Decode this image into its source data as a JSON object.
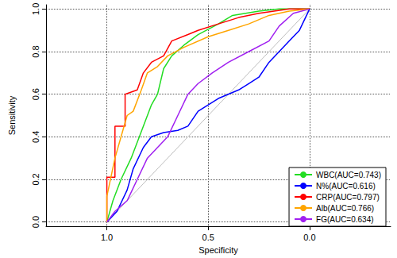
{
  "chart_data": {
    "type": "line",
    "x_label": "Specificity",
    "y_label": "Sensitivity",
    "xlim": [
      1.3,
      -0.4
    ],
    "xticks": [
      {
        "value": 1,
        "label": "1.0"
      },
      {
        "value": 0.5,
        "label": "0.5"
      },
      {
        "value": 0,
        "label": "0.0"
      }
    ],
    "ylim": [
      -0.02,
      1.02
    ],
    "yticks": [
      {
        "value": 0,
        "label": "0.0"
      },
      {
        "value": 0.2,
        "label": "0.2"
      },
      {
        "value": 0.4,
        "label": "0.4"
      },
      {
        "value": 0.6,
        "label": "0.6"
      },
      {
        "value": 0.8,
        "label": "0.8"
      },
      {
        "value": 1,
        "label": "1.0"
      }
    ],
    "grid": true,
    "legend": "bottom right",
    "diagonal": {
      "x": [
        1,
        0
      ],
      "y": [
        0,
        1
      ],
      "color": "#bebebe"
    },
    "series": [
      {
        "name": "WBC(AUC=0.743)",
        "color": "#22dd22",
        "x": [
          1,
          0.97,
          0.93,
          0.88,
          0.82,
          0.78,
          0.75,
          0.72,
          0.68,
          0.62,
          0.55,
          0.45,
          0.38,
          0.25,
          0.15,
          0
        ],
        "values": [
          0,
          0.1,
          0.2,
          0.3,
          0.45,
          0.55,
          0.6,
          0.72,
          0.78,
          0.83,
          0.88,
          0.93,
          0.97,
          0.99,
          1,
          1
        ]
      },
      {
        "name": "N%(AUC=0.616)",
        "color": "#0000ff",
        "x": [
          1,
          0.95,
          0.9,
          0.87,
          0.82,
          0.78,
          0.72,
          0.65,
          0.6,
          0.55,
          0.45,
          0.35,
          0.3,
          0.25,
          0.2,
          0.15,
          0.1,
          0.05,
          0
        ],
        "values": [
          0,
          0.05,
          0.15,
          0.25,
          0.35,
          0.4,
          0.42,
          0.43,
          0.45,
          0.52,
          0.58,
          0.62,
          0.65,
          0.68,
          0.75,
          0.8,
          0.85,
          0.9,
          1
        ]
      },
      {
        "name": "CRP(AUC=0.797)",
        "color": "#ff0000",
        "x": [
          1,
          1,
          0.96,
          0.96,
          0.91,
          0.91,
          0.85,
          0.82,
          0.78,
          0.72,
          0.68,
          0.6,
          0.55,
          0.45,
          0.35,
          0.25,
          0.1,
          0
        ],
        "values": [
          0,
          0.21,
          0.21,
          0.45,
          0.45,
          0.6,
          0.62,
          0.7,
          0.75,
          0.78,
          0.85,
          0.88,
          0.9,
          0.93,
          0.96,
          0.98,
          1,
          1
        ]
      },
      {
        "name": "Alb(AUC=0.766)",
        "color": "#ffa500",
        "x": [
          1,
          1,
          0.96,
          0.93,
          0.9,
          0.87,
          0.83,
          0.8,
          0.75,
          0.7,
          0.62,
          0.5,
          0.4,
          0.3,
          0.2,
          0.1,
          0
        ],
        "values": [
          0,
          0.12,
          0.3,
          0.4,
          0.5,
          0.52,
          0.62,
          0.7,
          0.73,
          0.78,
          0.82,
          0.87,
          0.9,
          0.93,
          0.97,
          0.99,
          1
        ]
      },
      {
        "name": "FG(AUC=0.634)",
        "color": "#a020f0",
        "x": [
          1,
          0.96,
          0.9,
          0.85,
          0.8,
          0.75,
          0.7,
          0.65,
          0.6,
          0.55,
          0.48,
          0.4,
          0.3,
          0.2,
          0.15,
          0.08,
          0
        ],
        "values": [
          0,
          0.05,
          0.1,
          0.2,
          0.3,
          0.35,
          0.4,
          0.5,
          0.6,
          0.65,
          0.7,
          0.75,
          0.8,
          0.85,
          0.92,
          0.98,
          1
        ]
      }
    ]
  }
}
